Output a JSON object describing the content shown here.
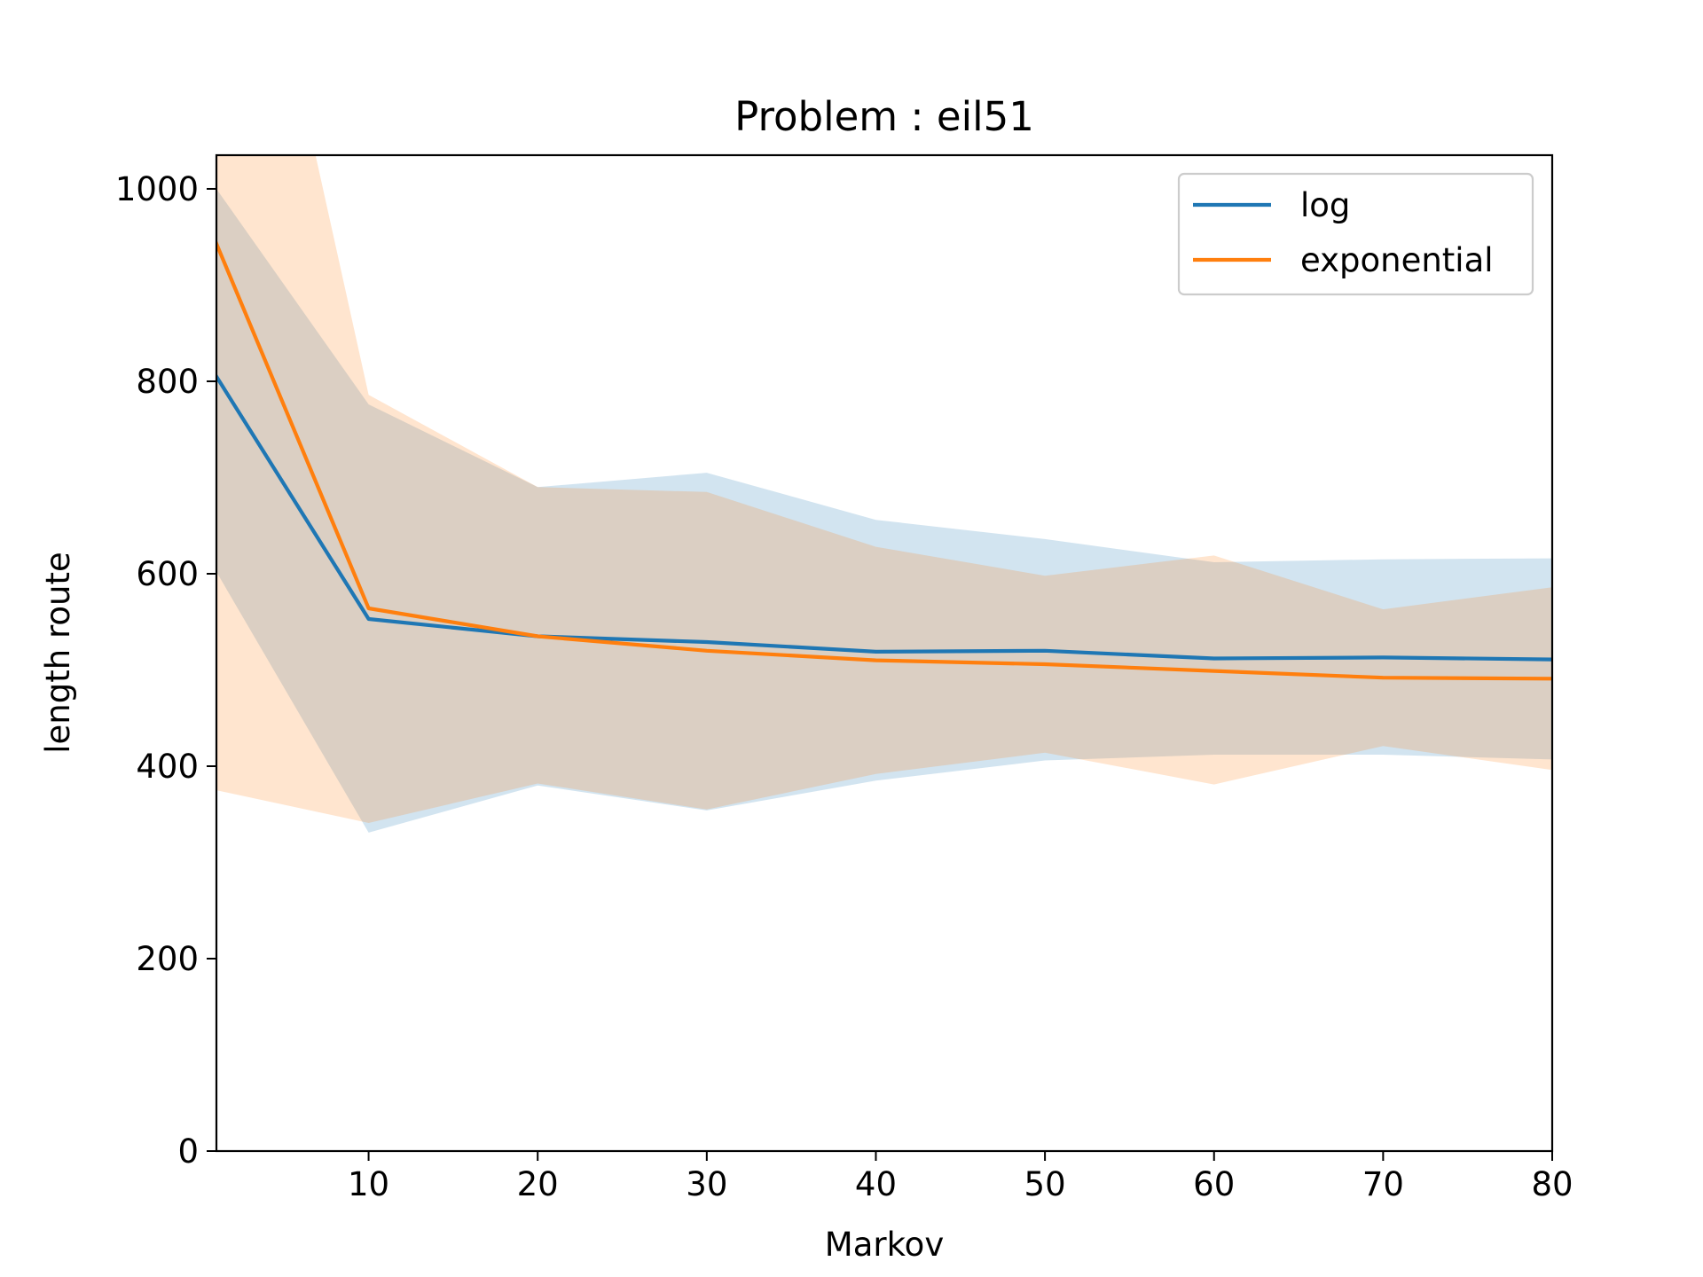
{
  "chart_data": {
    "type": "line",
    "title": "Problem : eil51",
    "xlabel": "Markov",
    "ylabel": "length route",
    "xlim": [
      1,
      80
    ],
    "ylim": [
      0,
      1035
    ],
    "xticks": [
      10,
      20,
      30,
      40,
      50,
      60,
      70,
      80
    ],
    "yticks": [
      0,
      200,
      400,
      600,
      800,
      1000
    ],
    "x": [
      1,
      10,
      20,
      30,
      40,
      50,
      60,
      70,
      80
    ],
    "grid": false,
    "legend_position": "upper right",
    "series": [
      {
        "name": "log",
        "color": "#1f77b4",
        "values": [
          805,
          553,
          535,
          529,
          519,
          520,
          512,
          513,
          511
        ],
        "upper": [
          1000,
          776,
          690,
          705,
          656,
          636,
          612,
          615,
          616
        ],
        "lower": [
          602,
          331,
          380,
          354,
          385,
          406,
          412,
          412,
          407
        ]
      },
      {
        "name": "exponential",
        "color": "#ff7f0e",
        "values": [
          943,
          564,
          535,
          520,
          510,
          506,
          499,
          492,
          491
        ],
        "upper": [
          1500,
          786,
          690,
          685,
          628,
          598,
          619,
          563,
          586
        ],
        "lower": [
          375,
          341,
          382,
          355,
          392,
          414,
          381,
          421,
          396
        ]
      }
    ]
  }
}
